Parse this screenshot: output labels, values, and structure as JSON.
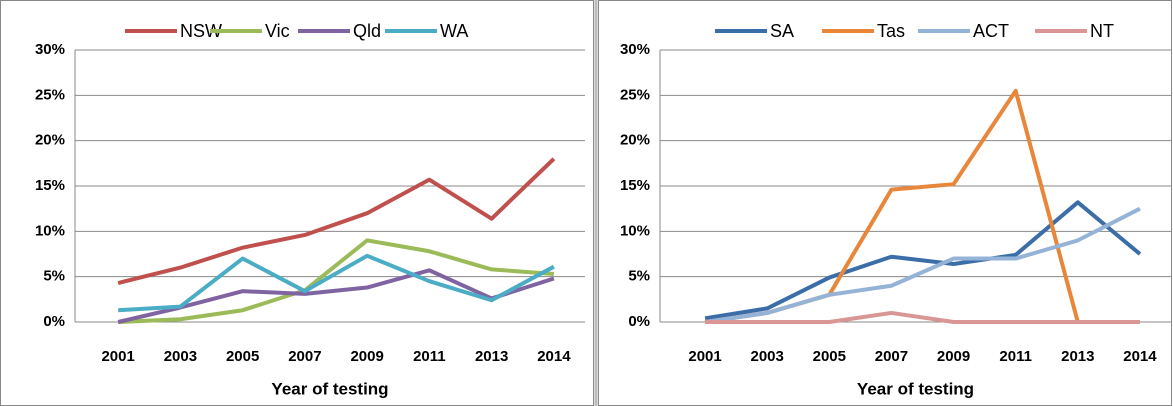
{
  "chart_data": [
    {
      "type": "line",
      "x_label": "Year of testing",
      "categories": [
        "2001",
        "2003",
        "2005",
        "2007",
        "2009",
        "2011",
        "2013",
        "2014"
      ],
      "ylim": [
        0,
        30
      ],
      "yticks": [
        {
          "value": 0,
          "label": "0%"
        },
        {
          "value": 5,
          "label": "5%"
        },
        {
          "value": 10,
          "label": "10%"
        },
        {
          "value": 15,
          "label": "15%"
        },
        {
          "value": 20,
          "label": "20%"
        },
        {
          "value": 25,
          "label": "25%"
        },
        {
          "value": 30,
          "label": "30%"
        }
      ],
      "grid": true,
      "legend": "top",
      "series": [
        {
          "name": "NSW",
          "color": "#c0504d",
          "values": [
            4.3,
            6.0,
            8.2,
            9.6,
            12.0,
            15.7,
            11.4,
            18.0
          ]
        },
        {
          "name": "Vic",
          "color": "#9bbb59",
          "values": [
            0,
            0.3,
            1.3,
            3.5,
            9.0,
            7.8,
            5.8,
            5.3
          ]
        },
        {
          "name": "Qld",
          "color": "#8064a2",
          "values": [
            0,
            1.6,
            3.4,
            3.1,
            3.8,
            5.7,
            2.6,
            4.8
          ]
        },
        {
          "name": "WA",
          "color": "#4bacc6",
          "values": [
            1.3,
            1.7,
            7.0,
            3.4,
            7.3,
            4.5,
            2.4,
            6.1
          ]
        }
      ]
    },
    {
      "type": "line",
      "x_label": "Year of testing",
      "categories": [
        "2001",
        "2003",
        "2005",
        "2007",
        "2009",
        "2011",
        "2013",
        "2014"
      ],
      "ylim": [
        0,
        30
      ],
      "yticks": [
        {
          "value": 0,
          "label": "0%"
        },
        {
          "value": 5,
          "label": "5%"
        },
        {
          "value": 10,
          "label": "10%"
        },
        {
          "value": 15,
          "label": "15%"
        },
        {
          "value": 20,
          "label": "20%"
        },
        {
          "value": 25,
          "label": "25%"
        },
        {
          "value": 30,
          "label": "30%"
        }
      ],
      "grid": true,
      "legend": "top",
      "series": [
        {
          "name": "SA",
          "color": "#3b6ea8",
          "values": [
            0.4,
            1.5,
            4.9,
            7.2,
            6.4,
            7.4,
            13.2,
            7.5
          ]
        },
        {
          "name": "Tas",
          "color": "#e8863a",
          "values": [
            0,
            1.0,
            3.0,
            14.6,
            15.2,
            25.5,
            0,
            0
          ]
        },
        {
          "name": "ACT",
          "color": "#95b3d7",
          "values": [
            0,
            1.0,
            3.0,
            4.0,
            7.0,
            7.0,
            9.0,
            12.5
          ]
        },
        {
          "name": "NT",
          "color": "#d99694",
          "values": [
            0,
            0,
            0,
            1.0,
            0,
            0,
            0,
            0
          ]
        }
      ]
    }
  ]
}
